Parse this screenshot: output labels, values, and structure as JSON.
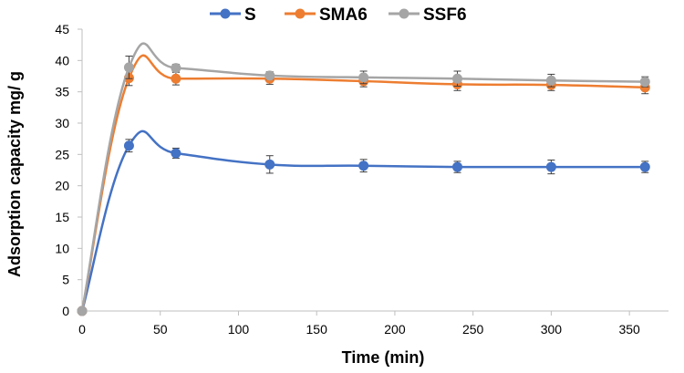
{
  "chart_data": {
    "type": "line",
    "title": "",
    "xlabel": "Time (min)",
    "ylabel": "Adsorption capacity mg/ g",
    "x": [
      0,
      30,
      60,
      120,
      180,
      240,
      300,
      360
    ],
    "xlim": [
      0,
      375
    ],
    "xticks": [
      0,
      50,
      100,
      150,
      200,
      250,
      300,
      350
    ],
    "ylim": [
      0,
      45
    ],
    "yticks": [
      0,
      5,
      10,
      15,
      20,
      25,
      30,
      35,
      40,
      45
    ],
    "grid": false,
    "legend_position": "top",
    "series": [
      {
        "name": "S",
        "color": "#4472C4",
        "values": [
          0,
          26.4,
          25.2,
          23.4,
          23.2,
          23.0,
          23.0,
          23.0
        ],
        "errors": [
          0,
          1.0,
          0.8,
          1.4,
          1.0,
          0.9,
          1.1,
          0.9
        ]
      },
      {
        "name": "SMA6",
        "color": "#ED7D31",
        "values": [
          0,
          37.2,
          37.1,
          37.1,
          36.7,
          36.2,
          36.1,
          35.7
        ],
        "errors": [
          0,
          1.2,
          1.0,
          0.9,
          0.9,
          1.0,
          0.9,
          1.0
        ]
      },
      {
        "name": "SSF6",
        "color": "#A5A5A5",
        "values": [
          0,
          38.9,
          38.8,
          37.6,
          37.3,
          37.1,
          36.8,
          36.6
        ],
        "errors": [
          0,
          1.8,
          0.6,
          0.6,
          1.0,
          1.2,
          1.0,
          0.8
        ]
      }
    ]
  }
}
